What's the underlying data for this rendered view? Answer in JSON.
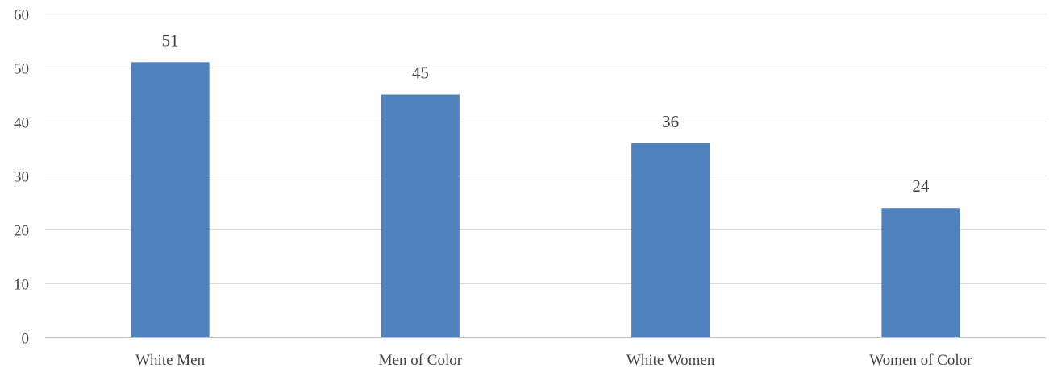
{
  "chart_data": {
    "type": "bar",
    "categories": [
      "White Men",
      "Men of Color",
      "White Women",
      "Women of Color"
    ],
    "values": [
      51,
      45,
      36,
      24
    ],
    "data_labels": [
      "51",
      "45",
      "36",
      "24"
    ],
    "title": "",
    "xlabel": "",
    "ylabel": "",
    "ylim": [
      0,
      60
    ],
    "yticks": [
      0,
      10,
      20,
      30,
      40,
      50,
      60
    ],
    "ytick_labels": [
      "0",
      "10",
      "20",
      "30",
      "40",
      "50",
      "60"
    ],
    "grid": true,
    "legend": "none",
    "colors": {
      "bar": "#4f81bd"
    }
  }
}
